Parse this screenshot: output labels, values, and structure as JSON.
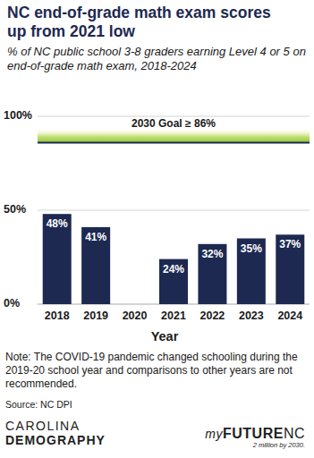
{
  "chart_data": {
    "type": "bar",
    "title": "NC end-of-grade math exam scores up from 2021 low",
    "subtitle": "% of NC public school 3-8 graders earning Level 4 or 5 on end-of-grade math exam, 2018-2024",
    "x_label": "Year",
    "categories": [
      "2018",
      "2019",
      "2020",
      "2021",
      "2022",
      "2023",
      "2024"
    ],
    "values": [
      48,
      41,
      null,
      24,
      32,
      35,
      37
    ],
    "value_labels": [
      "48%",
      "41%",
      null,
      "24%",
      "32%",
      "35%",
      "37%"
    ],
    "color": "#1d2951",
    "ylim": [
      0,
      100
    ],
    "yticks": [
      {
        "value": 0,
        "label": "0%"
      },
      {
        "value": 50,
        "label": "50%"
      },
      {
        "value": 100,
        "label": "100%"
      }
    ],
    "grid": true,
    "data_labels": true,
    "annotations": [
      {
        "text": "2030 Goal ≥ 86%",
        "value": 86
      }
    ],
    "note": "Note: The COVID-19 pandemic changed schooling during the 2019-20 school year and comparisons to other years are not recommended.",
    "source": "Source: NC DPI",
    "logos": {
      "left": [
        "CAROLINA",
        "DEMOGRAPHY"
      ],
      "right": [
        "my",
        "FUTURE",
        "NC"
      ],
      "tagline": "2 million by 2030."
    }
  }
}
